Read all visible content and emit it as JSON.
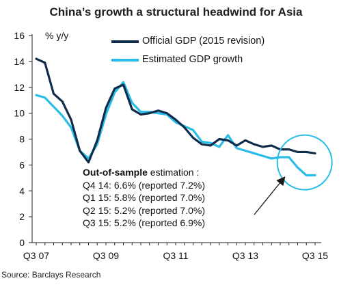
{
  "title": "China’s growth a structural headwind for Asia",
  "source": "Source: Barclays Research",
  "annotation": {
    "heading_bold": "Out-of-sample",
    "heading_rest": " estimation :",
    "lines": [
      "Q4 14: 6.6% (reported 7.2%)",
      "Q1 15: 5.8% (reported 7.0%)",
      "Q2 15: 5.2% (reported 7.0%)",
      "Q3 15: 5.2% (reported 6.9%)"
    ]
  },
  "colors": {
    "official": "#0f2c4a",
    "estimated": "#29bce6",
    "highlight_circle": "#29bce6",
    "arrow": "#1a1a1a",
    "axis": "#222222"
  },
  "chart_data": {
    "type": "line",
    "title": "China’s growth a structural headwind for Asia",
    "ylabel": "% y/y",
    "xlabel": "",
    "ylim": [
      0,
      16
    ],
    "yticks": [
      "0",
      "2",
      "4",
      "6",
      "8",
      "10",
      "12",
      "14",
      "16"
    ],
    "xtick_labels": [
      "Q3 07",
      "Q3 09",
      "Q3 11",
      "Q3 13",
      "Q3 15"
    ],
    "x": [
      "Q3 07",
      "Q4 07",
      "Q1 08",
      "Q2 08",
      "Q3 08",
      "Q4 08",
      "Q1 09",
      "Q2 09",
      "Q3 09",
      "Q4 09",
      "Q1 10",
      "Q2 10",
      "Q3 10",
      "Q4 10",
      "Q1 11",
      "Q2 11",
      "Q3 11",
      "Q4 11",
      "Q1 12",
      "Q2 12",
      "Q3 12",
      "Q4 12",
      "Q1 13",
      "Q2 13",
      "Q3 13",
      "Q4 13",
      "Q1 14",
      "Q2 14",
      "Q3 14",
      "Q4 14",
      "Q1 15",
      "Q2 15",
      "Q3 15"
    ],
    "legend_position": "top",
    "grid": false,
    "series": [
      {
        "name": "Official GDP (2015 revision)",
        "values": [
          14.2,
          13.9,
          11.5,
          10.9,
          9.5,
          7.1,
          6.2,
          7.9,
          10.4,
          11.9,
          12.2,
          10.3,
          9.9,
          10.0,
          10.2,
          10.0,
          9.5,
          8.9,
          8.1,
          7.6,
          7.5,
          8.0,
          7.9,
          7.5,
          7.9,
          7.6,
          7.4,
          7.5,
          7.2,
          7.2,
          7.0,
          7.0,
          6.9
        ]
      },
      {
        "name": "Estimated GDP growth",
        "values": [
          11.4,
          11.2,
          10.5,
          9.8,
          8.9,
          7.1,
          6.5,
          7.6,
          9.9,
          11.6,
          12.4,
          10.8,
          10.1,
          10.1,
          10.0,
          9.9,
          9.3,
          9.0,
          8.7,
          7.8,
          7.7,
          7.4,
          8.3,
          7.3,
          7.1,
          6.9,
          6.7,
          6.5,
          6.6,
          6.6,
          5.8,
          5.2,
          5.2
        ]
      }
    ]
  }
}
